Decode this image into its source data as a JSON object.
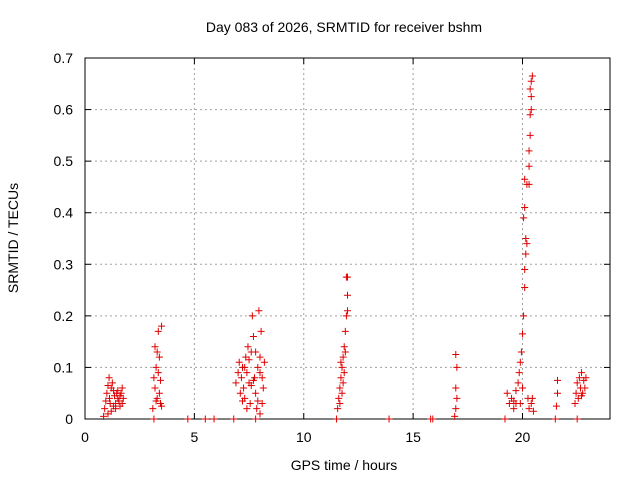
{
  "chart_data": {
    "type": "scatter",
    "title": "Day 083 of 2026, SRMTID for receiver bshm",
    "xlabel": "GPS time / hours",
    "ylabel": "SRMTID / TECUs",
    "xlim": [
      0,
      24
    ],
    "ylim": [
      0,
      0.7
    ],
    "xticks": [
      0,
      5,
      10,
      15,
      20
    ],
    "xtick_labels": [
      "0",
      "5",
      "10",
      "15",
      "20"
    ],
    "yticks": [
      0,
      0.1,
      0.2,
      0.3,
      0.4,
      0.5,
      0.6,
      0.7
    ],
    "ytick_labels": [
      "0",
      "0.1",
      "0.2",
      "0.3",
      "0.4",
      "0.5",
      "0.6",
      "0.7"
    ],
    "grid": true,
    "marker": "+",
    "color": "#e00000",
    "series": [
      {
        "name": "SRMTID",
        "points": [
          [
            0.85,
            0.005
          ],
          [
            0.9,
            0.02
          ],
          [
            0.95,
            0.035
          ],
          [
            1.0,
            0.05
          ],
          [
            1.05,
            0.065
          ],
          [
            1.1,
            0.08
          ],
          [
            1.12,
            0.04
          ],
          [
            1.15,
            0.03
          ],
          [
            1.2,
            0.06
          ],
          [
            1.25,
            0.07
          ],
          [
            1.3,
            0.055
          ],
          [
            1.35,
            0.045
          ],
          [
            1.4,
            0.03
          ],
          [
            1.45,
            0.05
          ],
          [
            1.5,
            0.04
          ],
          [
            1.55,
            0.035
          ],
          [
            1.6,
            0.045
          ],
          [
            1.65,
            0.05
          ],
          [
            1.7,
            0.03
          ],
          [
            1.75,
            0.04
          ],
          [
            1.2,
            0.015
          ],
          [
            1.3,
            0.025
          ],
          [
            1.4,
            0.02
          ],
          [
            1.5,
            0.055
          ],
          [
            1.6,
            0.025
          ],
          [
            1.7,
            0.06
          ],
          [
            1.05,
            0.01
          ],
          [
            3.1,
            0.02
          ],
          [
            3.15,
            0.08
          ],
          [
            3.2,
            0.14
          ],
          [
            3.25,
            0.1
          ],
          [
            3.3,
            0.13
          ],
          [
            3.35,
            0.17
          ],
          [
            3.4,
            0.05
          ],
          [
            3.45,
            0.03
          ],
          [
            3.5,
            0.18
          ],
          [
            3.3,
            0.04
          ],
          [
            3.35,
            0.09
          ],
          [
            3.4,
            0.12
          ],
          [
            3.45,
            0.075
          ],
          [
            3.5,
            0.025
          ],
          [
            3.25,
            0.035
          ],
          [
            3.2,
            0.06
          ],
          [
            3.15,
            0.0
          ],
          [
            4.7,
            0.0
          ],
          [
            5.5,
            0.0
          ],
          [
            5.9,
            0.0
          ],
          [
            6.8,
            0.0
          ],
          [
            6.9,
            0.07
          ],
          [
            7.0,
            0.09
          ],
          [
            7.05,
            0.11
          ],
          [
            7.1,
            0.05
          ],
          [
            7.15,
            0.08
          ],
          [
            7.2,
            0.1
          ],
          [
            7.25,
            0.06
          ],
          [
            7.3,
            0.04
          ],
          [
            7.35,
            0.12
          ],
          [
            7.4,
            0.09
          ],
          [
            7.45,
            0.14
          ],
          [
            7.5,
            0.07
          ],
          [
            7.55,
            0.03
          ],
          [
            7.6,
            0.13
          ],
          [
            7.65,
            0.2
          ],
          [
            7.7,
            0.16
          ],
          [
            7.75,
            0.08
          ],
          [
            7.8,
            0.05
          ],
          [
            7.85,
            0.02
          ],
          [
            7.9,
            0.1
          ],
          [
            7.95,
            0.21
          ],
          [
            8.0,
            0.12
          ],
          [
            8.05,
            0.17
          ],
          [
            8.1,
            0.08
          ],
          [
            8.15,
            0.06
          ],
          [
            8.2,
            0.11
          ],
          [
            7.3,
            0.1
          ],
          [
            7.5,
            0.115
          ],
          [
            7.7,
            0.075
          ],
          [
            7.9,
            0.035
          ],
          [
            8.1,
            0.03
          ],
          [
            7.4,
            0.02
          ],
          [
            7.6,
            0.065
          ],
          [
            7.8,
            0.13
          ],
          [
            8.0,
            0.09
          ],
          [
            7.2,
            0.035
          ],
          [
            7.8,
            0.0
          ],
          [
            8.0,
            0.01
          ],
          [
            11.5,
            0.0
          ],
          [
            11.55,
            0.02
          ],
          [
            11.6,
            0.04
          ],
          [
            11.65,
            0.06
          ],
          [
            11.7,
            0.08
          ],
          [
            11.75,
            0.1
          ],
          [
            11.8,
            0.12
          ],
          [
            11.85,
            0.14
          ],
          [
            11.9,
            0.17
          ],
          [
            11.95,
            0.2
          ],
          [
            12.0,
            0.24
          ],
          [
            11.95,
            0.275
          ],
          [
            12.0,
            0.275
          ],
          [
            11.85,
            0.09
          ],
          [
            11.75,
            0.05
          ],
          [
            11.65,
            0.03
          ],
          [
            11.9,
            0.13
          ],
          [
            12.0,
            0.21
          ],
          [
            11.8,
            0.07
          ],
          [
            11.7,
            0.11
          ],
          [
            13.9,
            0.0
          ],
          [
            15.8,
            0.0
          ],
          [
            15.9,
            0.0
          ],
          [
            16.9,
            0.005
          ],
          [
            16.95,
            0.02
          ],
          [
            17.0,
            0.04
          ],
          [
            16.95,
            0.06
          ],
          [
            17.0,
            0.1
          ],
          [
            16.95,
            0.125
          ],
          [
            19.2,
            0.0
          ],
          [
            19.3,
            0.05
          ],
          [
            19.4,
            0.03
          ],
          [
            19.5,
            0.04
          ],
          [
            19.6,
            0.02
          ],
          [
            19.7,
            0.055
          ],
          [
            19.8,
            0.07
          ],
          [
            19.85,
            0.09
          ],
          [
            19.9,
            0.11
          ],
          [
            19.95,
            0.13
          ],
          [
            20.0,
            0.165
          ],
          [
            20.05,
            0.2
          ],
          [
            20.1,
            0.255
          ],
          [
            20.1,
            0.29
          ],
          [
            20.15,
            0.32
          ],
          [
            20.15,
            0.35
          ],
          [
            20.2,
            0.34
          ],
          [
            20.05,
            0.39
          ],
          [
            20.1,
            0.41
          ],
          [
            20.2,
            0.455
          ],
          [
            20.1,
            0.465
          ],
          [
            20.3,
            0.49
          ],
          [
            20.3,
            0.52
          ],
          [
            20.35,
            0.55
          ],
          [
            20.35,
            0.59
          ],
          [
            20.4,
            0.625
          ],
          [
            20.35,
            0.64
          ],
          [
            20.4,
            0.655
          ],
          [
            20.45,
            0.665
          ],
          [
            20.4,
            0.6
          ],
          [
            20.3,
            0.455
          ],
          [
            20.25,
            0.04
          ],
          [
            20.3,
            0.02
          ],
          [
            20.4,
            0.03
          ],
          [
            20.5,
            0.015
          ],
          [
            20.45,
            0.04
          ],
          [
            20.0,
            0.06
          ],
          [
            19.9,
            0.03
          ],
          [
            19.7,
            0.03
          ],
          [
            19.6,
            0.035
          ],
          [
            21.5,
            0.0
          ],
          [
            21.55,
            0.025
          ],
          [
            21.6,
            0.05
          ],
          [
            21.6,
            0.075
          ],
          [
            22.4,
            0.03
          ],
          [
            22.45,
            0.05
          ],
          [
            22.5,
            0.07
          ],
          [
            22.55,
            0.04
          ],
          [
            22.6,
            0.08
          ],
          [
            22.65,
            0.06
          ],
          [
            22.7,
            0.09
          ],
          [
            22.75,
            0.05
          ],
          [
            22.8,
            0.075
          ],
          [
            22.85,
            0.06
          ],
          [
            22.9,
            0.08
          ],
          [
            22.5,
            0.0
          ],
          [
            22.7,
            0.045
          ]
        ]
      }
    ]
  }
}
